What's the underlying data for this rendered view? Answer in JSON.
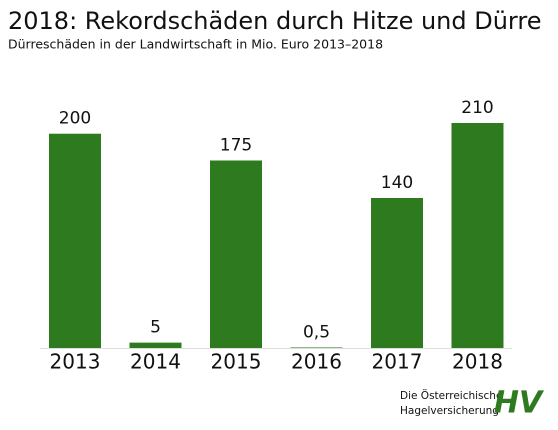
{
  "chart_data": {
    "type": "bar",
    "title": "2018: Rekordschäden durch Hitze und Dürre",
    "subtitle": "Dürreschäden in der Landwirtschaft in Mio. Euro 2013–2018",
    "categories": [
      "2013",
      "2014",
      "2015",
      "2016",
      "2017",
      "2018"
    ],
    "values": [
      200,
      5,
      175,
      0.5,
      140,
      210
    ],
    "value_labels": [
      "200",
      "5",
      "175",
      "0,5",
      "140",
      "210"
    ],
    "color": "#2e7a1f"
  },
  "logo": {
    "lines": [
      "Die Österreichische",
      "Hagelversicherung"
    ],
    "mark": "HV"
  }
}
